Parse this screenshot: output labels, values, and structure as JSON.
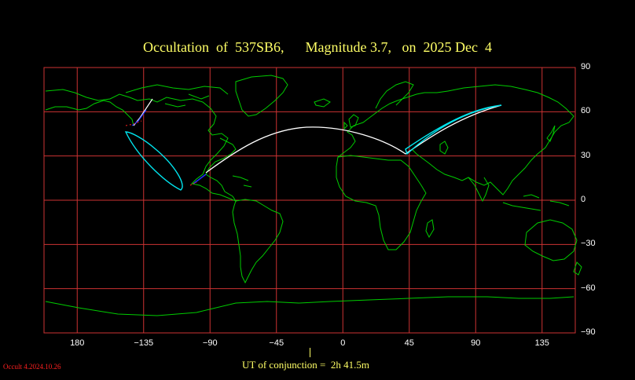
{
  "title": "Occultation  of  537SB6,      Magnitude 3.7,   on  2025 Dec  4",
  "axes": {
    "lon_ticks": [
      {
        "value": 180,
        "label": "180"
      },
      {
        "value": -135,
        "label": "−135"
      },
      {
        "value": -90,
        "label": "−90"
      },
      {
        "value": -45,
        "label": "−45"
      },
      {
        "value": 0,
        "label": "0"
      },
      {
        "value": 45,
        "label": "45"
      },
      {
        "value": 90,
        "label": "90"
      },
      {
        "value": 135,
        "label": "135"
      }
    ],
    "lat_ticks": [
      {
        "value": 90,
        "label": "90"
      },
      {
        "value": 60,
        "label": "60"
      },
      {
        "value": 30,
        "label": "30"
      },
      {
        "value": 0,
        "label": "0"
      },
      {
        "value": -30,
        "label": "−30"
      },
      {
        "value": -60,
        "label": "−60"
      },
      {
        "value": -90,
        "label": "−90"
      }
    ]
  },
  "footer": {
    "ut_label": "UT of conjunction =  2h 41.5m",
    "version": "Occult 4.2024.10.26"
  },
  "colors": {
    "background": "#000000",
    "grid": "#cc3333",
    "coast": "#00cc00",
    "path": "#ffffff",
    "limit": "#00e5ee",
    "path_blue": "#2030ff",
    "path_red": "#ff2020",
    "text": "#ffff66"
  }
}
